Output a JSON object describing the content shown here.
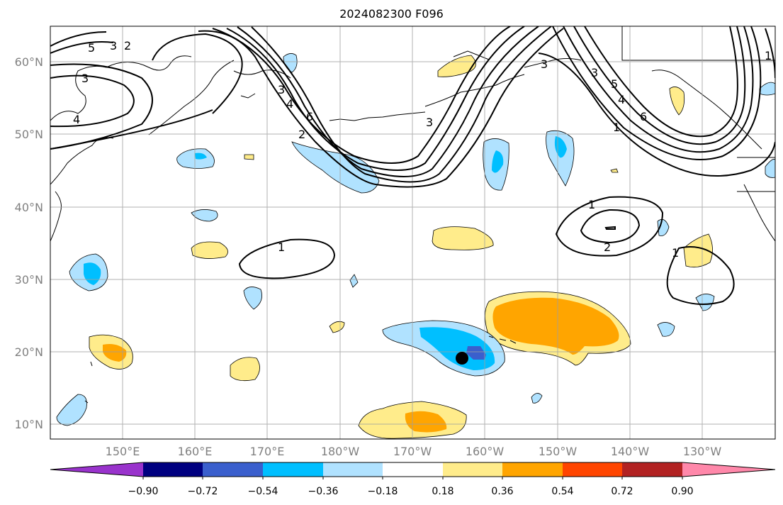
{
  "title": "2024082300 F096",
  "lat_labels": [
    "60°N",
    "50°N",
    "40°N",
    "30°N",
    "20°N",
    "10°N"
  ],
  "lon_labels": [
    "150°E",
    "160°E",
    "170°E",
    "180°W",
    "170°W",
    "160°W",
    "150°W",
    "140°W",
    "130°W"
  ],
  "colorbar": {
    "ticks": [
      "−0.90",
      "−0.72",
      "−0.54",
      "−0.36",
      "−0.18",
      "0.18",
      "0.36",
      "0.54",
      "0.72",
      "0.90"
    ],
    "colors": [
      "#9933cc",
      "#000080",
      "#3a5fcd",
      "#00bfff",
      "#b0e2ff",
      "#ffffff",
      "#ffec8b",
      "#ffa500",
      "#ff4500",
      "#b22222",
      "#ff88aa"
    ]
  },
  "contour_labels": [
    "5",
    "3",
    "2",
    "3",
    "4",
    "3",
    "4",
    "6",
    "2",
    "3",
    "3",
    "4",
    "6",
    "5",
    "3",
    "1",
    "1",
    "1",
    "2",
    "1",
    "1"
  ],
  "marker": "storm-position-dot"
}
